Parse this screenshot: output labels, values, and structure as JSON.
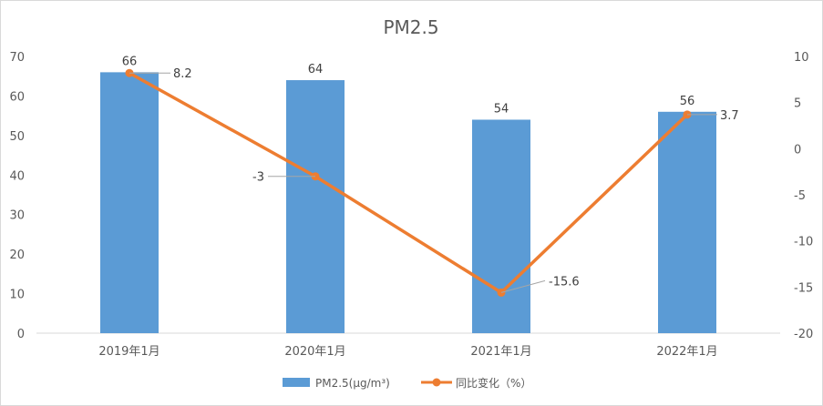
{
  "chart_data": {
    "type": "bar",
    "title": "PM2.5",
    "categories": [
      "2019年1月",
      "2020年1月",
      "2021年1月",
      "2022年1月"
    ],
    "series": [
      {
        "name": "PM2.5(μg/m³)",
        "type": "bar",
        "axis": "left",
        "color": "#5b9bd5",
        "values": [
          66,
          64,
          54,
          56
        ],
        "data_labels": [
          "66",
          "64",
          "54",
          "56"
        ]
      },
      {
        "name": "同比变化（%）",
        "type": "line",
        "axis": "right",
        "color": "#ed7d31",
        "values": [
          8.2,
          -3,
          -15.6,
          3.7
        ],
        "data_labels": [
          "8.2",
          "-3",
          "-15.6",
          "3.7"
        ]
      }
    ],
    "y_left": {
      "min": 0,
      "max": 70,
      "ticks": [
        "0",
        "10",
        "20",
        "30",
        "40",
        "50",
        "60",
        "70"
      ]
    },
    "y_right": {
      "min": -20,
      "max": 10,
      "ticks": [
        "-20",
        "-15",
        "-10",
        "-5",
        "0",
        "5",
        "10"
      ]
    },
    "grid": false,
    "legend_position": "bottom"
  }
}
